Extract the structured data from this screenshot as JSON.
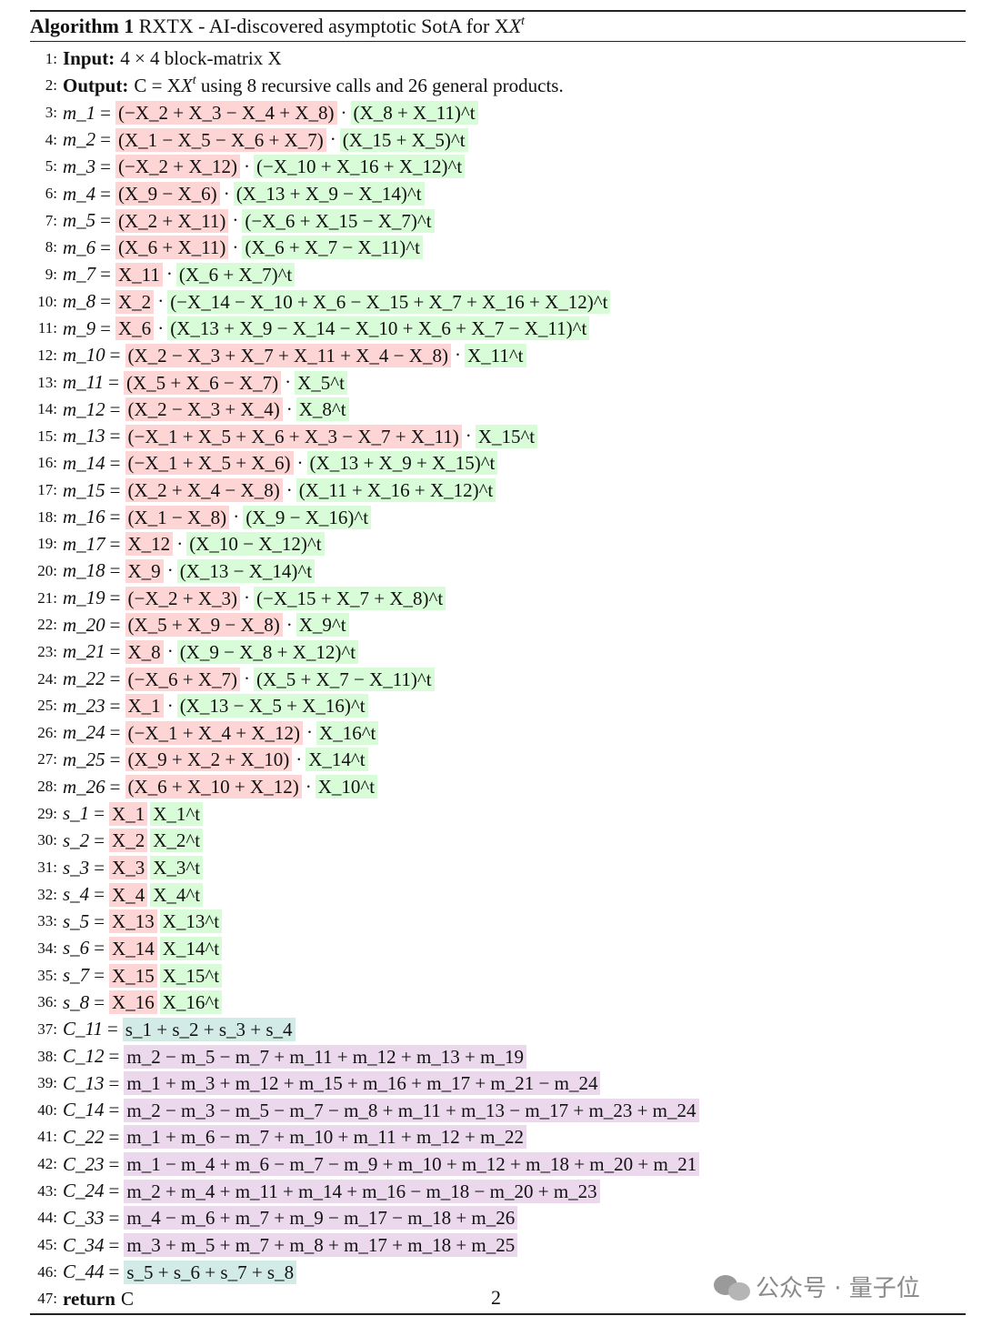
{
  "header": {
    "label": "Algorithm 1",
    "title": "RXTX - AI-discovered asymptotic SotA for XX^t"
  },
  "colors": {
    "red": "#fdd5d5",
    "green": "#d8fbd8",
    "teal": "#d3ebe7",
    "purple": "#ebd8ec"
  },
  "lines": [
    {
      "n": "1:",
      "kw": "Input:",
      "text": "4 × 4 block-matrix X"
    },
    {
      "n": "2:",
      "kw": "Output:",
      "text": "C = XX^t using 8 recursive calls and 26 general products."
    },
    {
      "n": "3:",
      "lhs": "m_1",
      "parts": [
        [
          "r",
          "(−X_2 + X_3 − X_4 + X_8)"
        ],
        [
          "g",
          "(X_8 + X_11)^t"
        ]
      ]
    },
    {
      "n": "4:",
      "lhs": "m_2",
      "parts": [
        [
          "r",
          "(X_1 − X_5 − X_6 + X_7)"
        ],
        [
          "g",
          "(X_15 + X_5)^t"
        ]
      ]
    },
    {
      "n": "5:",
      "lhs": "m_3",
      "parts": [
        [
          "r",
          "(−X_2 + X_12)"
        ],
        [
          "g",
          "(−X_10 + X_16 + X_12)^t"
        ]
      ]
    },
    {
      "n": "6:",
      "lhs": "m_4",
      "parts": [
        [
          "r",
          "(X_9 − X_6)"
        ],
        [
          "g",
          "(X_13 + X_9 − X_14)^t"
        ]
      ]
    },
    {
      "n": "7:",
      "lhs": "m_5",
      "parts": [
        [
          "r",
          "(X_2 + X_11)"
        ],
        [
          "g",
          "(−X_6 + X_15 − X_7)^t"
        ]
      ]
    },
    {
      "n": "8:",
      "lhs": "m_6",
      "parts": [
        [
          "r",
          "(X_6 + X_11)"
        ],
        [
          "g",
          "(X_6 + X_7 − X_11)^t"
        ]
      ]
    },
    {
      "n": "9:",
      "lhs": "m_7",
      "parts": [
        [
          "r",
          "X_11"
        ],
        [
          "g",
          "(X_6 + X_7)^t"
        ]
      ]
    },
    {
      "n": "10:",
      "lhs": "m_8",
      "parts": [
        [
          "r",
          "X_2"
        ],
        [
          "g",
          "(−X_14 − X_10 + X_6 − X_15 + X_7 + X_16 + X_12)^t"
        ]
      ]
    },
    {
      "n": "11:",
      "lhs": "m_9",
      "parts": [
        [
          "r",
          "X_6"
        ],
        [
          "g",
          "(X_13 + X_9 − X_14 − X_10 + X_6 + X_7 − X_11)^t"
        ]
      ]
    },
    {
      "n": "12:",
      "lhs": "m_10",
      "parts": [
        [
          "r",
          "(X_2 − X_3 + X_7 + X_11 + X_4 − X_8)"
        ],
        [
          "g",
          "X_11^t"
        ]
      ]
    },
    {
      "n": "13:",
      "lhs": "m_11",
      "parts": [
        [
          "r",
          "(X_5 + X_6 − X_7)"
        ],
        [
          "g",
          "X_5^t"
        ]
      ]
    },
    {
      "n": "14:",
      "lhs": "m_12",
      "parts": [
        [
          "r",
          "(X_2 − X_3 + X_4)"
        ],
        [
          "g",
          "X_8^t"
        ]
      ]
    },
    {
      "n": "15:",
      "lhs": "m_13",
      "parts": [
        [
          "r",
          "(−X_1 + X_5 + X_6 + X_3 − X_7 + X_11)"
        ],
        [
          "g",
          "X_15^t"
        ]
      ]
    },
    {
      "n": "16:",
      "lhs": "m_14",
      "parts": [
        [
          "r",
          "(−X_1 + X_5 + X_6)"
        ],
        [
          "g",
          "(X_13 + X_9 + X_15)^t"
        ]
      ]
    },
    {
      "n": "17:",
      "lhs": "m_15",
      "parts": [
        [
          "r",
          "(X_2 + X_4 − X_8)"
        ],
        [
          "g",
          "(X_11 + X_16 + X_12)^t"
        ]
      ]
    },
    {
      "n": "18:",
      "lhs": "m_16",
      "parts": [
        [
          "r",
          "(X_1 − X_8)"
        ],
        [
          "g",
          "(X_9 − X_16)^t"
        ]
      ]
    },
    {
      "n": "19:",
      "lhs": "m_17",
      "parts": [
        [
          "r",
          "X_12"
        ],
        [
          "g",
          "(X_10 − X_12)^t"
        ]
      ]
    },
    {
      "n": "20:",
      "lhs": "m_18",
      "parts": [
        [
          "r",
          "X_9"
        ],
        [
          "g",
          "(X_13 − X_14)^t"
        ]
      ]
    },
    {
      "n": "21:",
      "lhs": "m_19",
      "parts": [
        [
          "r",
          "(−X_2 + X_3)"
        ],
        [
          "g",
          "(−X_15 + X_7 + X_8)^t"
        ]
      ]
    },
    {
      "n": "22:",
      "lhs": "m_20",
      "parts": [
        [
          "r",
          "(X_5 + X_9 − X_8)"
        ],
        [
          "g",
          "X_9^t"
        ]
      ]
    },
    {
      "n": "23:",
      "lhs": "m_21",
      "parts": [
        [
          "r",
          "X_8"
        ],
        [
          "g",
          "(X_9 − X_8 + X_12)^t"
        ]
      ]
    },
    {
      "n": "24:",
      "lhs": "m_22",
      "parts": [
        [
          "r",
          "(−X_6 + X_7)"
        ],
        [
          "g",
          "(X_5 + X_7 − X_11)^t"
        ]
      ]
    },
    {
      "n": "25:",
      "lhs": "m_23",
      "parts": [
        [
          "r",
          "X_1"
        ],
        [
          "g",
          "(X_13 − X_5 + X_16)^t"
        ]
      ]
    },
    {
      "n": "26:",
      "lhs": "m_24",
      "parts": [
        [
          "r",
          "(−X_1 + X_4 + X_12)"
        ],
        [
          "g",
          "X_16^t"
        ]
      ]
    },
    {
      "n": "27:",
      "lhs": "m_25",
      "parts": [
        [
          "r",
          "(X_9 + X_2 + X_10)"
        ],
        [
          "g",
          "X_14^t"
        ]
      ]
    },
    {
      "n": "28:",
      "lhs": "m_26",
      "parts": [
        [
          "r",
          "(X_6 + X_10 + X_12)"
        ],
        [
          "g",
          "X_10^t"
        ]
      ]
    },
    {
      "n": "29:",
      "lhs": "s_1",
      "sq": [
        [
          "r",
          "X_1"
        ],
        [
          "g",
          "X_1^t"
        ]
      ]
    },
    {
      "n": "30:",
      "lhs": "s_2",
      "sq": [
        [
          "r",
          "X_2"
        ],
        [
          "g",
          "X_2^t"
        ]
      ]
    },
    {
      "n": "31:",
      "lhs": "s_3",
      "sq": [
        [
          "r",
          "X_3"
        ],
        [
          "g",
          "X_3^t"
        ]
      ]
    },
    {
      "n": "32:",
      "lhs": "s_4",
      "sq": [
        [
          "r",
          "X_4"
        ],
        [
          "g",
          "X_4^t"
        ]
      ]
    },
    {
      "n": "33:",
      "lhs": "s_5",
      "sq": [
        [
          "r",
          "X_13"
        ],
        [
          "g",
          "X_13^t"
        ]
      ]
    },
    {
      "n": "34:",
      "lhs": "s_6",
      "sq": [
        [
          "r",
          "X_14"
        ],
        [
          "g",
          "X_14^t"
        ]
      ]
    },
    {
      "n": "35:",
      "lhs": "s_7",
      "sq": [
        [
          "r",
          "X_15"
        ],
        [
          "g",
          "X_15^t"
        ]
      ]
    },
    {
      "n": "36:",
      "lhs": "s_8",
      "sq": [
        [
          "r",
          "X_16"
        ],
        [
          "g",
          "X_16^t"
        ]
      ]
    },
    {
      "n": "37:",
      "lhs": "C_11",
      "rhs": [
        "b",
        "s_1 + s_2 + s_3 + s_4"
      ]
    },
    {
      "n": "38:",
      "lhs": "C_12",
      "rhs": [
        "p",
        "m_2 − m_5 − m_7 + m_11 + m_12 + m_13 + m_19"
      ]
    },
    {
      "n": "39:",
      "lhs": "C_13",
      "rhs": [
        "p",
        "m_1 + m_3 + m_12 + m_15 + m_16 + m_17 + m_21 − m_24"
      ]
    },
    {
      "n": "40:",
      "lhs": "C_14",
      "rhs": [
        "p",
        "m_2 − m_3 − m_5 − m_7 − m_8 + m_11 + m_13 − m_17 + m_23 + m_24"
      ]
    },
    {
      "n": "41:",
      "lhs": "C_22",
      "rhs": [
        "p",
        "m_1 + m_6 − m_7 + m_10 + m_11 + m_12 + m_22"
      ]
    },
    {
      "n": "42:",
      "lhs": "C_23",
      "rhs": [
        "p",
        "m_1 − m_4 + m_6 − m_7 − m_9 + m_10 + m_12 + m_18 + m_20 + m_21"
      ]
    },
    {
      "n": "43:",
      "lhs": "C_24",
      "rhs": [
        "p",
        "m_2 + m_4 + m_11 + m_14 + m_16 − m_18 − m_20 + m_23"
      ]
    },
    {
      "n": "44:",
      "lhs": "C_33",
      "rhs": [
        "p",
        "m_4 − m_6 + m_7 + m_9 − m_17 − m_18 + m_26"
      ]
    },
    {
      "n": "45:",
      "lhs": "C_34",
      "rhs": [
        "p",
        "m_3 + m_5 + m_7 + m_8 + m_17 + m_18 + m_25"
      ]
    },
    {
      "n": "46:",
      "lhs": "C_44",
      "rhs": [
        "b",
        "s_5 + s_6 + s_7 + s_8"
      ]
    },
    {
      "n": "47:",
      "kw": "return",
      "text": "C"
    }
  ],
  "footer": {
    "page_number": "2",
    "watermark": "公众号 · 量子位"
  }
}
